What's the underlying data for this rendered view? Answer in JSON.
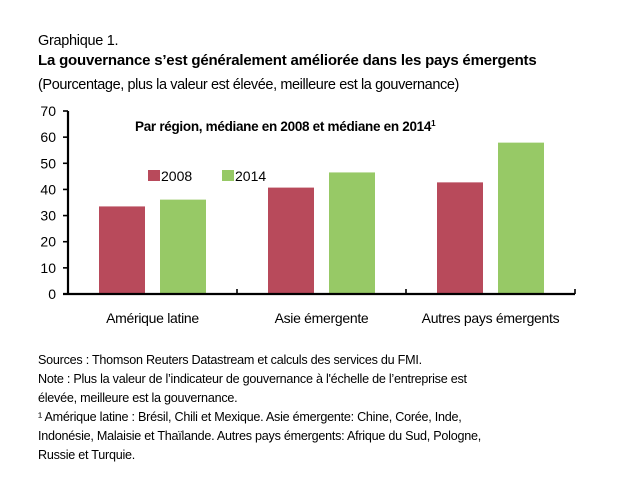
{
  "header": {
    "graph_label": "Graphique 1.",
    "title": "La gouvernance s’est généralement améliorée dans les pays émergents",
    "subtitle": "(Pourcentage, plus la valeur est élevée, meilleure est la gouvernance)"
  },
  "chart_data": {
    "type": "bar",
    "title": "Par région, médiane en 2008  et médiane en 2014",
    "title_superscript": "1",
    "categories": [
      "Amérique latine",
      "Asie émergente",
      "Autres pays émergents"
    ],
    "series": [
      {
        "name": "2008",
        "color": "#B84A5B",
        "values": [
          33.5,
          40.7,
          42.7
        ]
      },
      {
        "name": "2014",
        "color": "#97C966",
        "values": [
          36.1,
          46.5,
          57.9
        ]
      }
    ],
    "xlabel": "",
    "ylabel": "",
    "ylim": [
      0,
      70
    ],
    "yticks": [
      "0",
      "10",
      "20",
      "30",
      "40",
      "50",
      "60",
      "70"
    ],
    "grid": false,
    "legend_position": "top-left-inside"
  },
  "notes": {
    "sources": "Sources : Thomson Reuters Datastream  et calculs des services du FMI.",
    "note_line1": "Note : Plus la valeur de l’indicateur de gouvernance à l'échelle de l’entreprise est",
    "note_line2": "élevée, meilleure est la gouvernance.",
    "footnote_line1": "¹ Amérique latine : Brésil, Chili et Mexique. Asie émergente: Chine,  Corée, Inde,",
    "footnote_line2": "Indonésie, Malaisie  et Thaïlande.  Autres pays émergents: Afrique du Sud, Pologne,",
    "footnote_line3": "Russie et Turquie."
  }
}
